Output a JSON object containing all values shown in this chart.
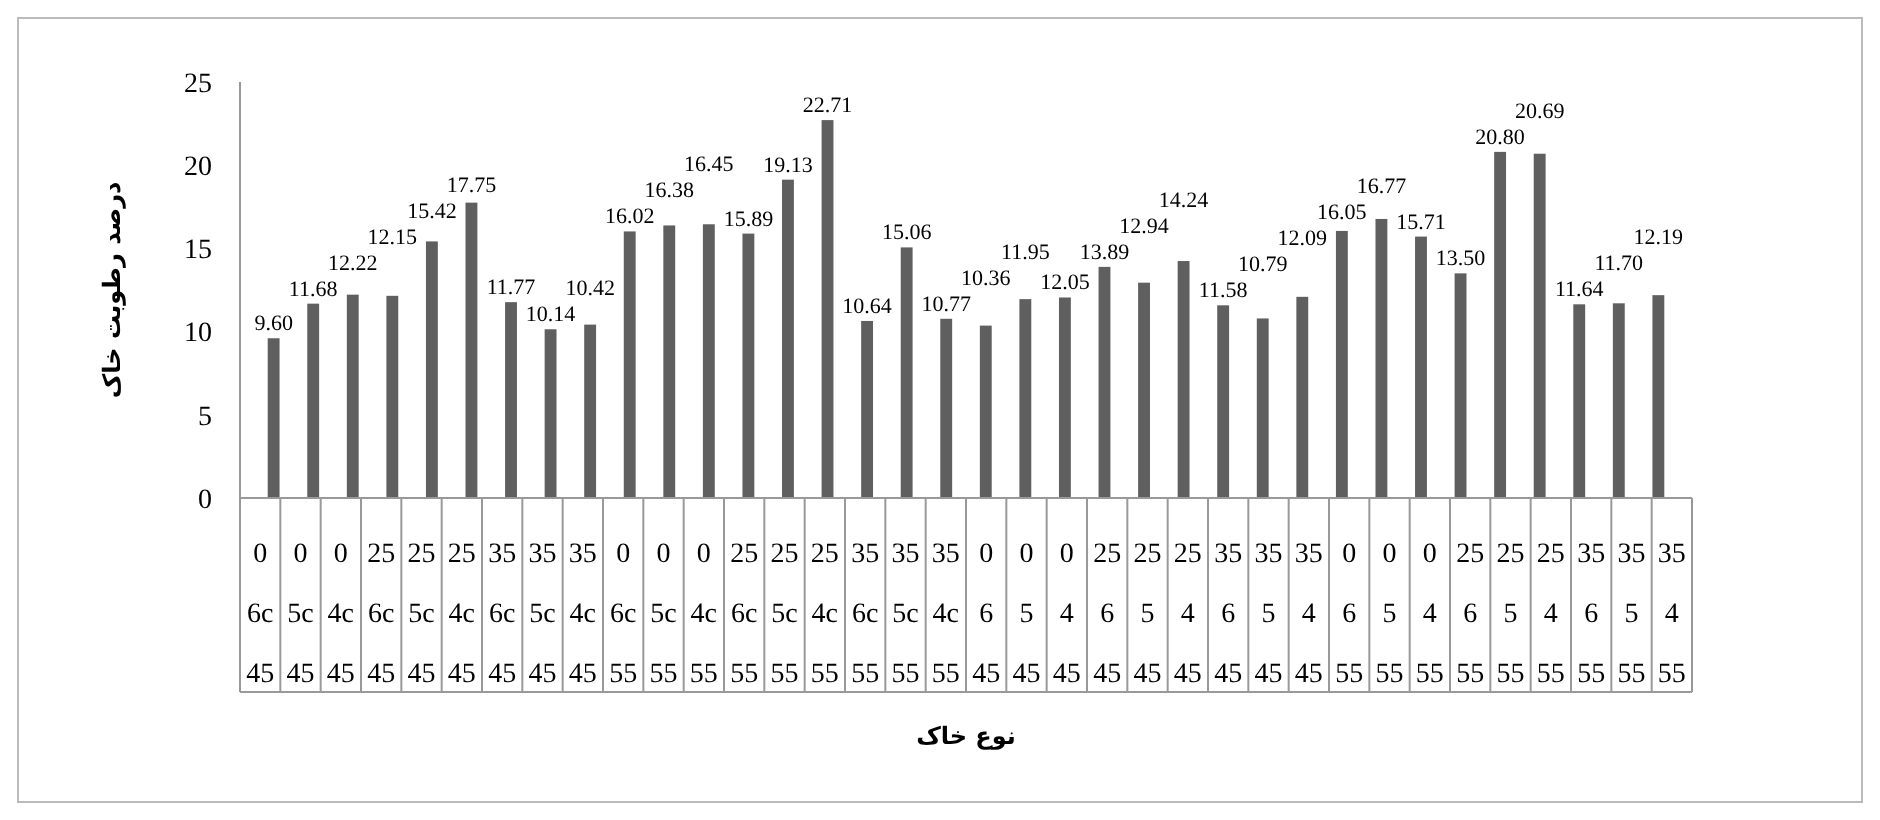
{
  "chart_data": {
    "type": "bar",
    "xlabel": "نوع خاک",
    "ylabel": "درصد رطوبت خاک",
    "categories": [
      "0 6c 45",
      "0 5c 45",
      "0 4c 45",
      "25 6c 45",
      "25 5c 45",
      "25 4c 45",
      "35 6c 45",
      "35 5c 45",
      "35 4c 45",
      "0 6c 55",
      "0 5c 55",
      "0 4c 55",
      "25 6c 55",
      "25 5c 55",
      "25 4c 55",
      "35 6c 55",
      "35 5c 55",
      "35 4c 55",
      "0 6 45",
      "0 5 45",
      "0 4 45",
      "25 6 45",
      "25 5 45",
      "25 4 45",
      "35 6 45",
      "35 5 45",
      "35 4 45",
      "0 6 55",
      "0 5 55",
      "0 4 55",
      "25 6 55",
      "25 5 55",
      "25 4 55",
      "35 6 55",
      "35 5 55",
      "35 4 55"
    ],
    "values": [
      9.6,
      11.68,
      12.22,
      12.15,
      15.42,
      17.75,
      11.77,
      10.14,
      10.42,
      16.02,
      16.38,
      16.45,
      15.89,
      19.13,
      22.71,
      10.64,
      15.06,
      10.77,
      10.36,
      11.95,
      12.05,
      13.89,
      12.94,
      14.24,
      11.58,
      10.79,
      12.09,
      16.05,
      16.77,
      15.71,
      13.5,
      20.8,
      20.69,
      11.64,
      11.7,
      12.19
    ],
    "value_labels": [
      "9.60",
      "11.68",
      "12.22",
      "12.15",
      "15.42",
      "17.75",
      "11.77",
      "10.14",
      "10.42",
      "16.02",
      "16.38",
      "16.45",
      "15.89",
      "19.13",
      "22.71",
      "10.64",
      "15.06",
      "10.77",
      "10.36",
      "11.95",
      "12.05",
      "13.89",
      "12.94",
      "14.24",
      "11.58",
      "10.79",
      "12.09",
      "16.05",
      "16.77",
      "15.71",
      "13.50",
      "20.80",
      "20.69",
      "11.64",
      "11.70",
      "12.19"
    ],
    "color": "#5f5f5f",
    "ylim": [
      0,
      25
    ],
    "yticks": [
      0,
      5,
      10,
      15,
      20,
      25
    ],
    "grid": false
  }
}
